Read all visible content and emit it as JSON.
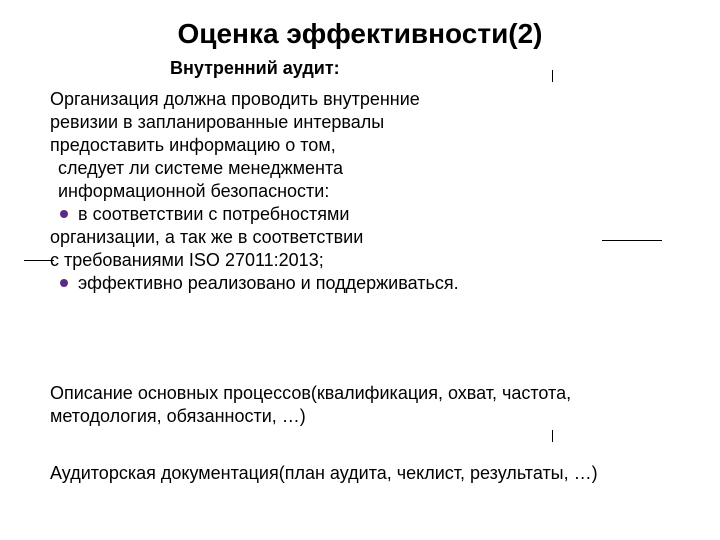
{
  "title": "Оценка эффективности(2)",
  "subtitle": "Внутренний аудит:",
  "colors": {
    "text": "#000000",
    "bullet": "#5b2b82",
    "background": "#ffffff"
  },
  "typography": {
    "title_fontsize_pt": 21,
    "subtitle_fontsize_pt": 14,
    "body_fontsize_pt": 14,
    "font_family": "Arial",
    "title_weight": "bold",
    "subtitle_weight": "bold"
  },
  "body": {
    "line1": "Организация должна проводить внутренние",
    "line2": "ревизии в запланированные интервалы",
    "line3": "предоставить информацию о том,",
    "line4": "следует ли системе менеджмента",
    "line5": "информационной безопасности:",
    "bullet1a": "в соответствии с потребностями",
    "bullet1b": "организации, а так же в соответствии",
    "bullet1c": "с требованиями ISO 27011:2013;",
    "bullet2": "эффективно реализовано и поддерживаться."
  },
  "section2": {
    "line1": "Описание основных процессов(квалификация, охват, частота,",
    "line2": "методология, обязанности, …)"
  },
  "section3": {
    "line1": "Аудиторская документация(план аудита, чеклист, результаты, …)"
  }
}
